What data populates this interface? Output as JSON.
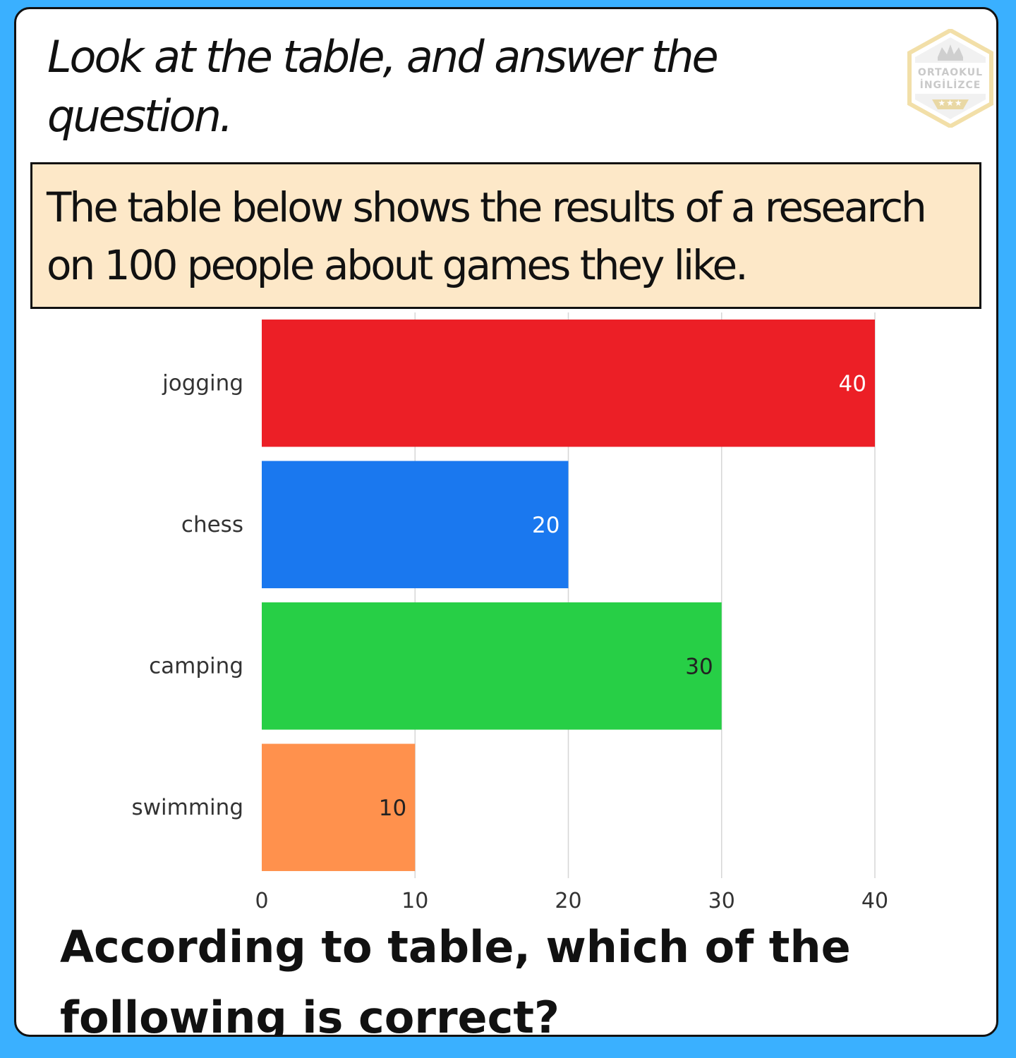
{
  "instruction": "Look at the table, and answer the question.",
  "intro": "The table below shows the results of a research on 100 people about games they like.",
  "question": "According to table, which of the following is correct?",
  "logo": {
    "line1": "ORTAOKUL",
    "line2": "İNGİLİZCE",
    "stars": "★★★",
    "color": "#c8c8c8",
    "accent": "#f2dfa8"
  },
  "chart_data": {
    "type": "bar",
    "orientation": "horizontal",
    "categories": [
      "jogging",
      "chess",
      "camping",
      "swimming"
    ],
    "values": [
      40,
      20,
      30,
      10
    ],
    "colors": [
      "#ec1f26",
      "#1a78ef",
      "#27cf46",
      "#ff914d"
    ],
    "label_colors": [
      "#ffffff",
      "#ffffff",
      "#222222",
      "#222222"
    ],
    "xlim": [
      0,
      40
    ],
    "xticks": [
      0,
      10,
      20,
      30,
      40
    ],
    "grid": true,
    "title": "",
    "xlabel": "",
    "ylabel": ""
  }
}
